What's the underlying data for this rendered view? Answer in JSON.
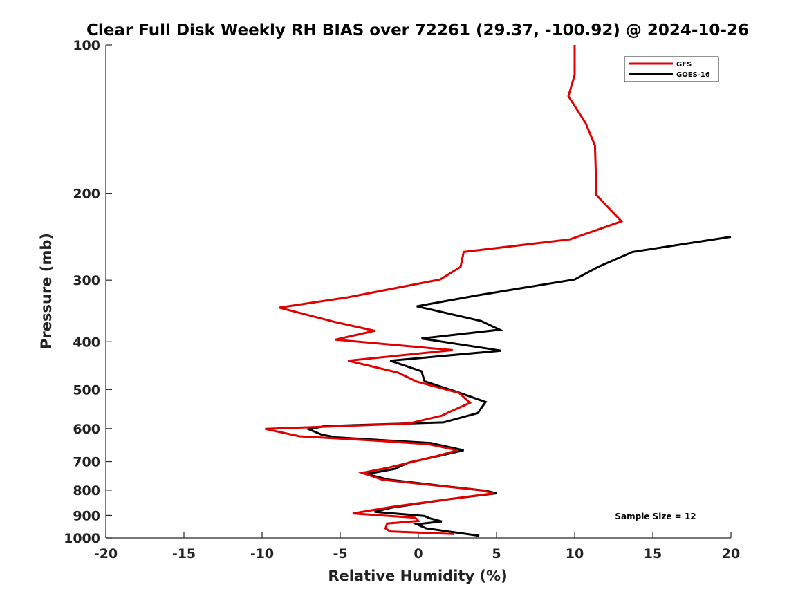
{
  "chart_data": {
    "type": "line",
    "title": "Clear Full Disk Weekly RH BIAS over 72261 (29.37, -100.92) @ 2024-10-26",
    "xlabel": "Relative Humidity (%)",
    "ylabel": "Pressure (mb)",
    "xlim": [
      -20,
      20
    ],
    "ylim": [
      1000,
      100
    ],
    "yscale": "log",
    "y_inverted": true,
    "grid": false,
    "xticks": [
      -20,
      -15,
      -10,
      -5,
      0,
      5,
      10,
      15,
      20
    ],
    "yticks": [
      100,
      200,
      300,
      400,
      500,
      600,
      700,
      800,
      900,
      1000
    ],
    "xtick_labels": [
      "-20",
      "-15",
      "-10",
      "-5",
      "0",
      "5",
      "10",
      "15",
      "20"
    ],
    "ytick_labels": [
      "100",
      "200",
      "300",
      "400",
      "500",
      "600",
      "700",
      "800",
      "900",
      "1000"
    ],
    "legend_position": "top-right",
    "annotation": "Sample Size = 12",
    "series": [
      {
        "name": "GFS",
        "color": "#e00000",
        "points": [
          [
            10.0,
            100
          ],
          [
            10.0,
            115
          ],
          [
            9.6,
            127
          ],
          [
            10.7,
            144
          ],
          [
            11.3,
            160
          ],
          [
            11.35,
            180
          ],
          [
            11.35,
            201
          ],
          [
            13.0,
            228
          ],
          [
            9.7,
            248
          ],
          [
            2.9,
            263
          ],
          [
            2.7,
            282
          ],
          [
            1.4,
            299
          ],
          [
            -4.5,
            325
          ],
          [
            -8.9,
            341
          ],
          [
            -5.3,
            365
          ],
          [
            -2.8,
            380
          ],
          [
            -5.3,
            396
          ],
          [
            2.2,
            416
          ],
          [
            -4.5,
            437
          ],
          [
            -1.3,
            462
          ],
          [
            -0.1,
            482
          ],
          [
            2.6,
            508
          ],
          [
            3.3,
            532
          ],
          [
            2.0,
            555
          ],
          [
            1.5,
            565
          ],
          [
            -0.6,
            586
          ],
          [
            -9.8,
            601
          ],
          [
            -7.6,
            622
          ],
          [
            -3.0,
            634
          ],
          [
            0.6,
            645
          ],
          [
            2.5,
            664
          ],
          [
            1.2,
            682
          ],
          [
            -1.9,
            720
          ],
          [
            -3.6,
            738
          ],
          [
            -2.3,
            762
          ],
          [
            1.0,
            782
          ],
          [
            4.1,
            801
          ],
          [
            4.8,
            812
          ],
          [
            1.5,
            838
          ],
          [
            -1.8,
            866
          ],
          [
            -4.2,
            892
          ],
          [
            -1.3,
            905
          ],
          [
            -0.2,
            910
          ],
          [
            0.0,
            924
          ],
          [
            -2.0,
            935
          ],
          [
            -2.1,
            956
          ],
          [
            -1.8,
            970
          ],
          [
            2.3,
            982
          ]
        ]
      },
      {
        "name": "GOES-16",
        "color": "#000000",
        "points": [
          [
            20.0,
            245
          ],
          [
            13.7,
            263
          ],
          [
            11.5,
            282
          ],
          [
            10.0,
            299
          ],
          [
            3.8,
            322
          ],
          [
            -0.1,
            339
          ],
          [
            4.0,
            363
          ],
          [
            5.2,
            378
          ],
          [
            0.2,
            394
          ],
          [
            5.3,
            417
          ],
          [
            -1.8,
            437
          ],
          [
            0.2,
            459
          ],
          [
            0.4,
            481
          ],
          [
            2.5,
            506
          ],
          [
            4.3,
            530
          ],
          [
            3.8,
            558
          ],
          [
            1.6,
            583
          ],
          [
            -6.0,
            593
          ],
          [
            -7.0,
            602
          ],
          [
            -6.2,
            617
          ],
          [
            -5.3,
            625
          ],
          [
            0.8,
            642
          ],
          [
            2.9,
            664
          ],
          [
            1.4,
            681
          ],
          [
            -0.6,
            703
          ],
          [
            -1.5,
            724
          ],
          [
            -3.3,
            742
          ],
          [
            -1.9,
            762
          ],
          [
            1.2,
            782
          ],
          [
            4.3,
            802
          ],
          [
            5.0,
            812
          ],
          [
            2.0,
            834
          ],
          [
            -1.7,
            868
          ],
          [
            -2.8,
            885
          ],
          [
            0.4,
            903
          ],
          [
            0.7,
            912
          ],
          [
            1.5,
            926
          ],
          [
            -0.1,
            938
          ],
          [
            0.5,
            956
          ],
          [
            3.9,
            990
          ]
        ]
      }
    ]
  }
}
